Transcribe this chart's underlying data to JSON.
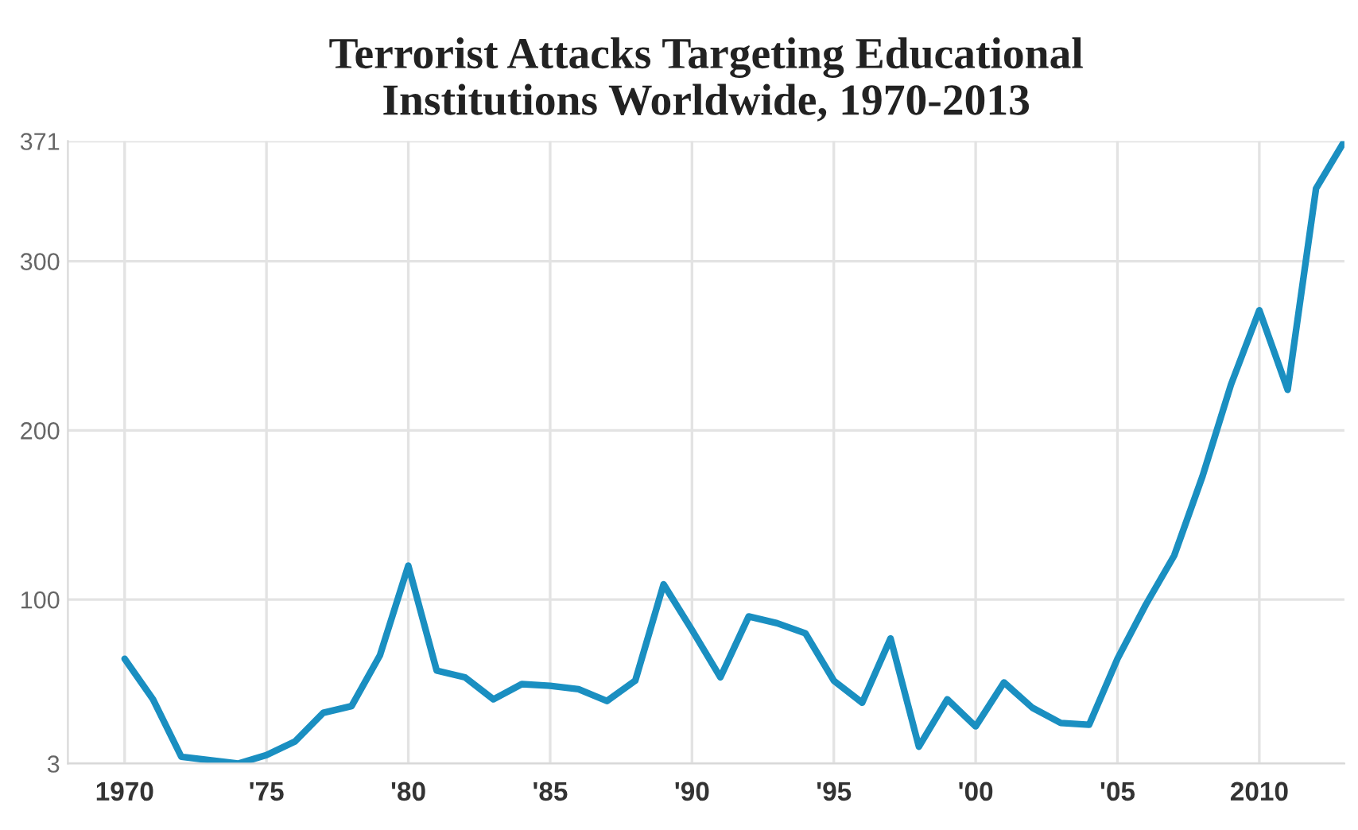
{
  "chart_data": {
    "type": "line",
    "title": "Terrorist Attacks Targeting Educational\nInstitutions Worldwide, 1970-2013",
    "x": [
      1970,
      1971,
      1972,
      1973,
      1974,
      1975,
      1976,
      1977,
      1978,
      1979,
      1980,
      1981,
      1982,
      1983,
      1984,
      1985,
      1986,
      1987,
      1988,
      1989,
      1990,
      1991,
      1992,
      1993,
      1994,
      1995,
      1996,
      1997,
      1998,
      1999,
      2000,
      2001,
      2002,
      2003,
      2004,
      2005,
      2006,
      2007,
      2008,
      2009,
      2010,
      2011,
      2012,
      2013
    ],
    "series": [
      {
        "color": "#1a8fc1",
        "values": [
          65,
          41,
          7,
          5,
          3,
          8,
          16,
          33,
          37,
          67,
          120,
          58,
          54,
          41,
          50,
          49,
          47,
          40,
          52,
          109,
          82,
          54,
          90,
          86,
          80,
          52,
          39,
          77,
          13,
          41,
          25,
          51,
          36,
          27,
          26,
          65,
          97,
          126,
          173,
          227,
          271,
          224,
          343,
          371
        ]
      }
    ],
    "xlim": [
      1968,
      2013
    ],
    "xticks": [
      1970,
      {
        "value": 1975,
        "label": "'75"
      },
      {
        "value": 1980,
        "label": "'80"
      },
      {
        "value": 1985,
        "label": "'85"
      },
      {
        "value": 1990,
        "label": "'90"
      },
      {
        "value": 1995,
        "label": "'95"
      },
      {
        "value": 2000,
        "label": "'00"
      },
      {
        "value": 2005,
        "label": "'05"
      },
      2010
    ],
    "ylim": [
      3,
      371
    ],
    "yticks": [
      3,
      100,
      200,
      300,
      371
    ],
    "grid": true,
    "marker": "none",
    "line_style": "solid"
  }
}
